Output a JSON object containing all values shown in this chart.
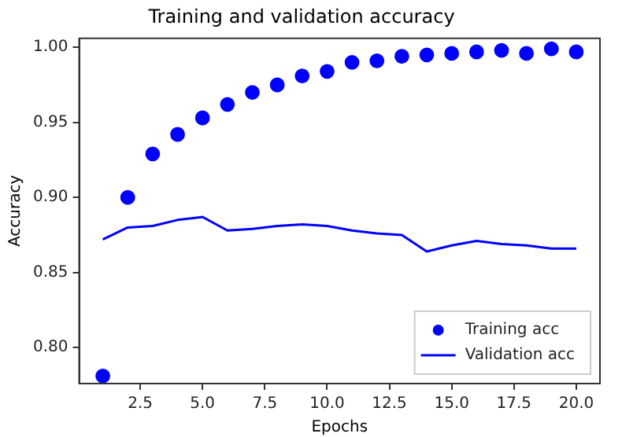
{
  "chart_data": {
    "type": "scatter",
    "title": "Training and validation accuracy",
    "xlabel": "Epochs",
    "ylabel": "Accuracy",
    "x": [
      1,
      2,
      3,
      4,
      5,
      6,
      7,
      8,
      9,
      10,
      11,
      12,
      13,
      14,
      15,
      16,
      17,
      18,
      19,
      20
    ],
    "series": [
      {
        "name": "Training acc",
        "color": "#0000ff",
        "marker": "circle",
        "values": [
          0.781,
          0.9,
          0.929,
          0.942,
          0.953,
          0.962,
          0.97,
          0.975,
          0.981,
          0.984,
          0.99,
          0.991,
          0.994,
          0.995,
          0.996,
          0.997,
          0.998,
          0.996,
          0.999,
          0.997
        ]
      },
      {
        "name": "Validation acc",
        "type": "line",
        "color": "#0000ff",
        "values": [
          0.872,
          0.88,
          0.881,
          0.885,
          0.887,
          0.878,
          0.879,
          0.881,
          0.882,
          0.881,
          0.878,
          0.876,
          0.875,
          0.864,
          0.868,
          0.871,
          0.869,
          0.868,
          0.866,
          0.866
        ]
      }
    ],
    "xlim": [
      0.05,
      20.95
    ],
    "xticks": [
      {
        "value": 2.5,
        "label": "2.5"
      },
      {
        "value": 5,
        "label": "5.0"
      },
      {
        "value": 7.5,
        "label": "7.5"
      },
      {
        "value": 10,
        "label": "10.0"
      },
      {
        "value": 12.5,
        "label": "12.5"
      },
      {
        "value": 15,
        "label": "15.0"
      },
      {
        "value": 17.5,
        "label": "17.5"
      },
      {
        "value": 20,
        "label": "20.0"
      }
    ],
    "ylim": [
      0.776,
      1.006
    ],
    "yticks": [
      {
        "value": 0.8,
        "label": "0.80"
      },
      {
        "value": 0.85,
        "label": "0.85"
      },
      {
        "value": 0.9,
        "label": "0.90"
      },
      {
        "value": 0.95,
        "label": "0.95"
      },
      {
        "value": 1,
        "label": "1.00"
      }
    ],
    "legend": "bottom right",
    "grid": false
  }
}
